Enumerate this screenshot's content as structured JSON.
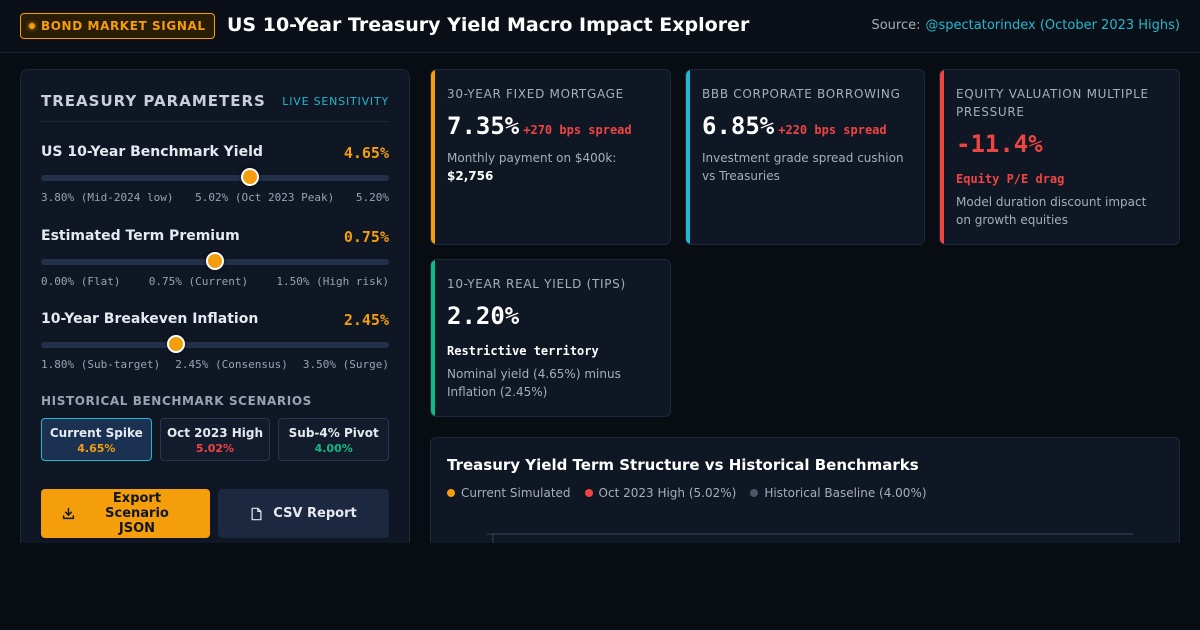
{
  "header": {
    "badge": "BOND MARKET SIGNAL",
    "title": "US 10-Year Treasury Yield Macro Impact Explorer",
    "source_label": "Source:",
    "source_link": "@spectatorindex (October 2023 Highs)"
  },
  "panel": {
    "title": "TREASURY PARAMETERS",
    "live": "LIVE SENSITIVITY",
    "params": [
      {
        "label": "US 10-Year Benchmark Yield",
        "value": "4.65%",
        "level": 0.6,
        "ticks": [
          "3.80% (Mid-2024 low)",
          "5.02% (Oct 2023 Peak)",
          "5.20%"
        ]
      },
      {
        "label": "Estimated Term Premium",
        "value": "0.75%",
        "level": 0.5,
        "ticks": [
          "0.00% (Flat)",
          "0.75% (Current)",
          "1.50% (High risk)"
        ]
      },
      {
        "label": "10-Year Breakeven Inflation",
        "value": "2.45%",
        "level": 0.38,
        "ticks": [
          "1.80% (Sub-target)",
          "2.45% (Consensus)",
          "3.50% (Surge)"
        ]
      }
    ],
    "scenarios_label": "HISTORICAL BENCHMARK SCENARIOS",
    "scenarios": [
      {
        "name": "Current Spike",
        "value": "4.65%",
        "color": "#f59e0b"
      },
      {
        "name": "Oct 2023 High",
        "value": "5.02%",
        "color": "#ef4444"
      },
      {
        "name": "Sub-4% Pivot",
        "value": "4.00%",
        "color": "#10b981"
      }
    ],
    "export_label": "Export Scenario JSON",
    "csv_label": "CSV Report"
  },
  "cards": {
    "mortgage": {
      "title": "30-YEAR FIXED MORTGAGE",
      "value": "7.35%",
      "spread": "+270 bps spread",
      "desc": "Monthly payment on $400k:",
      "desc_bold": "$2,756",
      "accent": "#f59e0b"
    },
    "corporate": {
      "title": "BBB CORPORATE BORROWING",
      "value": "6.85%",
      "spread": "+220 bps spread",
      "desc": "Investment grade spread cushion vs Treasuries",
      "accent": "#22b8cf"
    },
    "equity": {
      "title": "EQUITY VALUATION MULTIPLE PRESSURE",
      "value": "-11.4%",
      "status": "Equity P/E drag",
      "desc": "Model duration discount impact on growth equities",
      "accent": "#ef4444"
    },
    "real_yield": {
      "title": "10-YEAR REAL YIELD (TIPS)",
      "value": "2.20%",
      "status": "Restrictive territory",
      "desc": "Nominal yield (4.65%) minus Inflation (2.45%)",
      "accent": "#10b981"
    }
  },
  "chart": {
    "title": "Treasury Yield Term Structure vs Historical Benchmarks",
    "legend": [
      {
        "name": "Current Simulated",
        "color": "#f59e0b"
      },
      {
        "name": "Oct 2023 High (5.02%)",
        "color": "#ef4444"
      },
      {
        "name": "Historical Baseline (4.00%)",
        "color": "#4b5563"
      }
    ]
  }
}
